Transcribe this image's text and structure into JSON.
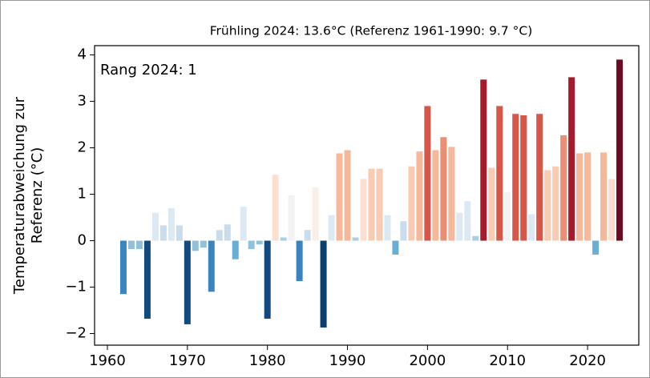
{
  "chart_data": {
    "type": "bar",
    "title": "Frühling  2024: 13.6°C (Referenz 1961-1990: 9.7 °C)",
    "annotation": "Rang 2024: 1",
    "ylabel": [
      "Temperaturabweichung zur",
      "Referenz (°C)"
    ],
    "x": [
      1962,
      1963,
      1964,
      1965,
      1966,
      1967,
      1968,
      1969,
      1970,
      1971,
      1972,
      1973,
      1974,
      1975,
      1976,
      1977,
      1978,
      1979,
      1980,
      1981,
      1982,
      1983,
      1984,
      1985,
      1986,
      1987,
      1988,
      1989,
      1990,
      1991,
      1992,
      1993,
      1994,
      1995,
      1996,
      1997,
      1998,
      1999,
      2000,
      2001,
      2002,
      2003,
      2004,
      2005,
      2006,
      2007,
      2008,
      2009,
      2010,
      2011,
      2012,
      2013,
      2014,
      2015,
      2016,
      2017,
      2018,
      2019,
      2020,
      2021,
      2022,
      2023,
      2024
    ],
    "values": [
      -1.15,
      -0.18,
      -0.18,
      -1.68,
      0.6,
      0.33,
      0.7,
      0.33,
      -1.8,
      -0.22,
      -0.15,
      -1.1,
      0.23,
      0.35,
      -0.4,
      0.73,
      -0.18,
      -0.08,
      -1.68,
      1.42,
      0.07,
      0.98,
      -0.87,
      0.23,
      1.15,
      -1.87,
      0.55,
      1.88,
      1.95,
      0.07,
      1.33,
      1.55,
      1.55,
      0.55,
      -0.3,
      0.42,
      1.6,
      1.92,
      2.9,
      1.95,
      2.23,
      2.02,
      0.6,
      0.85,
      0.1,
      3.47,
      1.57,
      2.9,
      1.05,
      2.73,
      2.7,
      0.57,
      2.73,
      1.52,
      1.6,
      2.27,
      3.52,
      1.88,
      1.9,
      -0.3,
      1.9,
      1.33,
      3.9
    ],
    "colors": [
      "#3a85c0",
      "#8fc1de",
      "#8fc1de",
      "#124a80",
      "#dce9f3",
      "#c8dcec",
      "#dce9f3",
      "#c8dcec",
      "#124a80",
      "#8fc1de",
      "#8fc1de",
      "#3a85c0",
      "#c8dcec",
      "#c8dcec",
      "#6aaed6",
      "#dce9f3",
      "#8fc1de",
      "#8fc1de",
      "#124a80",
      "#fbe0d2",
      "#a9cfe5",
      "#f2f2f2",
      "#3a85c0",
      "#c8dcec",
      "#f8efe9",
      "#0b3d6e",
      "#dce9f3",
      "#f5b89a",
      "#f5b89a",
      "#a9cfe5",
      "#fbe0d2",
      "#f9cbb3",
      "#f9cbb3",
      "#dce9f3",
      "#6aaed6",
      "#c8dcec",
      "#f9cbb3",
      "#f5b89a",
      "#d6574a",
      "#f5b89a",
      "#eb8e73",
      "#f5b89a",
      "#dce9f3",
      "#dce9f3",
      "#a9cfe5",
      "#a51b2d",
      "#f9cbb3",
      "#d6574a",
      "#f2f2f2",
      "#d6574a",
      "#d6574a",
      "#dce9f3",
      "#d6574a",
      "#f9cbb3",
      "#f9cbb3",
      "#eb8e73",
      "#a51b2d",
      "#f5b89a",
      "#f5b89a",
      "#6aaed6",
      "#f5b89a",
      "#fbe0d2",
      "#6b0a22"
    ],
    "xlim": [
      1958.4,
      2026.4
    ],
    "xticks": [
      1960,
      1970,
      1980,
      1990,
      2000,
      2010,
      2020
    ],
    "ylim": [
      -2.25,
      4.2
    ],
    "yticks": [
      {
        "value": -2,
        "label": "−2"
      },
      {
        "value": -1,
        "label": "−1"
      },
      0,
      1,
      2,
      3,
      4
    ]
  }
}
